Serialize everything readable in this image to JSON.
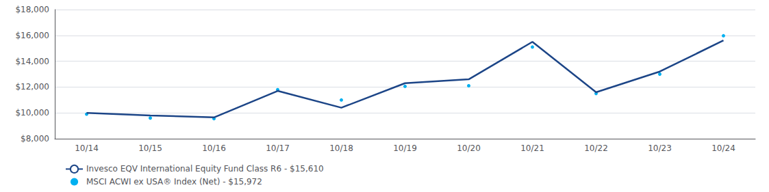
{
  "chart_data": {
    "type": "line",
    "categories": [
      "10/14",
      "10/15",
      "10/16",
      "10/17",
      "10/18",
      "10/19",
      "10/20",
      "10/21",
      "10/22",
      "10/23",
      "10/24"
    ],
    "series": [
      {
        "name": "Invesco EQV International Equity Fund Class R6 - $15,610",
        "color": "#1c4587",
        "line_style": "solid",
        "marker": "none",
        "values": [
          10000,
          9800,
          9650,
          11700,
          10400,
          12300,
          12600,
          15500,
          11600,
          13200,
          15610
        ]
      },
      {
        "name": "MSCI ACWI ex USA® Index (Net) - $15,972",
        "color": "#00b0f0",
        "line_style": "none",
        "marker": "dot",
        "values": [
          9900,
          9600,
          9550,
          11800,
          11000,
          12050,
          12100,
          15100,
          11500,
          13000,
          15972
        ]
      }
    ],
    "ylim": [
      8000,
      18000
    ],
    "yticks": [
      {
        "value": 8000,
        "label": "$8,000"
      },
      {
        "value": 10000,
        "label": "$10,000"
      },
      {
        "value": 12000,
        "label": "$12,000"
      },
      {
        "value": 14000,
        "label": "$14,000"
      },
      {
        "value": 16000,
        "label": "$16,000"
      },
      {
        "value": 18000,
        "label": "$18,000"
      }
    ],
    "grid": true,
    "legend": "bottom"
  }
}
